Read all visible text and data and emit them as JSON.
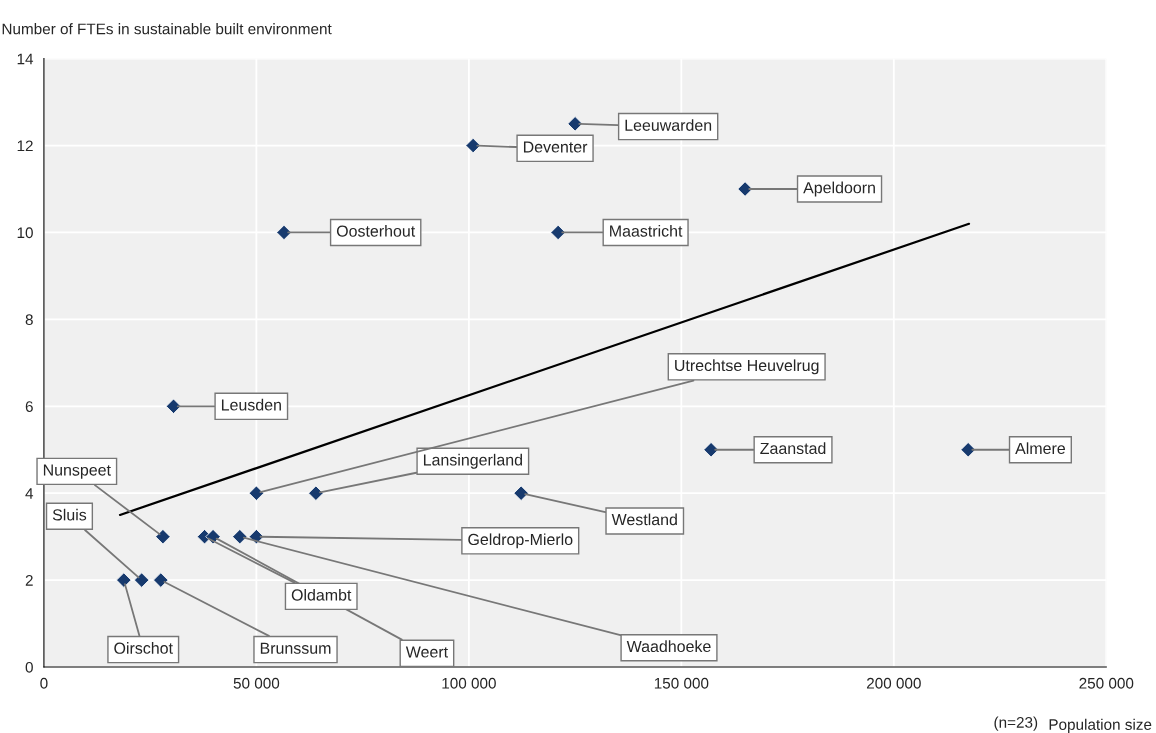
{
  "chart_data": {
    "type": "scatter",
    "ylabel": "Number of FTEs in sustainable built environment",
    "xlabel": "Population size",
    "xlim": [
      0,
      250000
    ],
    "ylim": [
      0,
      14
    ],
    "xticks": [
      {
        "value": 0,
        "label": "0"
      },
      {
        "value": 50000,
        "label": "50 000"
      },
      {
        "value": 100000,
        "label": "100 000"
      },
      {
        "value": 150000,
        "label": "150 000"
      },
      {
        "value": 200000,
        "label": "200 000"
      },
      {
        "value": 250000,
        "label": "250 000"
      }
    ],
    "yticks": [
      0,
      2,
      4,
      6,
      8,
      10,
      12,
      14
    ],
    "grid": true,
    "series": [
      {
        "marker": "diamond",
        "color": "#173a6e",
        "x": [
          125000,
          101000,
          165000,
          56500,
          121000,
          30500,
          157000,
          217500,
          112300,
          50000,
          64000,
          28000,
          50000,
          37800,
          39800,
          46100,
          23000,
          18800,
          27500
        ],
        "values": [
          12.5,
          12,
          11,
          10,
          10,
          6,
          5,
          5,
          4,
          4,
          4,
          3,
          3,
          3,
          3,
          3,
          2,
          2,
          2
        ]
      },
      {
        "type": "line",
        "marker": "none",
        "color": "#000000",
        "x": [
          17900,
          217700
        ],
        "values": [
          3.5,
          10.2
        ]
      }
    ],
    "annotations": [
      {
        "text": "Leeuwarden",
        "x": 125000,
        "y": 12.5
      },
      {
        "text": "Deventer",
        "x": 101000,
        "y": 12
      },
      {
        "text": "Apeldoorn",
        "x": 165000,
        "y": 11
      },
      {
        "text": "Oosterhout",
        "x": 56500,
        "y": 10
      },
      {
        "text": "Maastricht",
        "x": 121000,
        "y": 10
      },
      {
        "text": "Leusden",
        "x": 30500,
        "y": 6
      },
      {
        "text": "Zaanstad",
        "x": 157000,
        "y": 5
      },
      {
        "text": "Almere",
        "x": 217500,
        "y": 5
      },
      {
        "text": "Westland",
        "x": 112300,
        "y": 4
      },
      {
        "text": "Utrechtse Heuvelrug",
        "x": 50000,
        "y": 4
      },
      {
        "text": "Lansingerland",
        "x": 64000,
        "y": 4
      },
      {
        "text": "Nunspeet",
        "x": 28000,
        "y": 3
      },
      {
        "text": "Geldrop-Mierlo",
        "x": 50000,
        "y": 3
      },
      {
        "text": "Oldambt",
        "x": 37800,
        "y": 3
      },
      {
        "text": "Weert",
        "x": 39800,
        "y": 3
      },
      {
        "text": "Waadhoeke",
        "x": 46100,
        "y": 3
      },
      {
        "text": "Sluis",
        "x": 23000,
        "y": 2
      },
      {
        "text": "Oirschot",
        "x": 18800,
        "y": 2
      },
      {
        "text": "Brunssum",
        "x": 27500,
        "y": 2
      },
      "(n=23)"
    ]
  }
}
